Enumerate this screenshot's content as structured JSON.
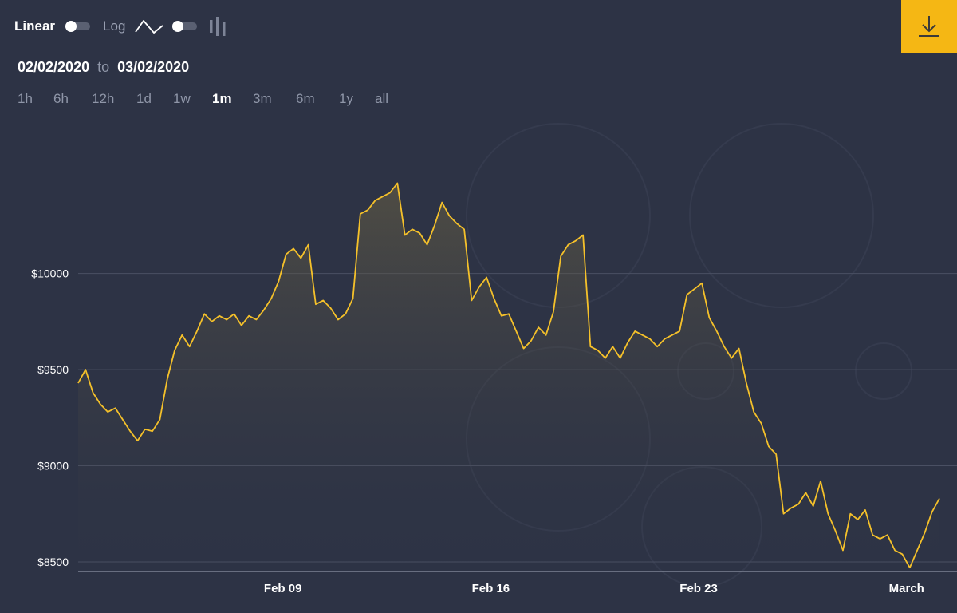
{
  "toolbar": {
    "linear_label": "Linear",
    "log_label": "Log",
    "line_icon": "line-chart-icon",
    "candle_icon": "candlestick-chart-icon",
    "download_icon": "download-icon"
  },
  "date_range": {
    "from": "02/02/2020",
    "to_label": "to",
    "to": "03/02/2020"
  },
  "ranges": [
    "1h",
    "6h",
    "12h",
    "1d",
    "1w",
    "1m",
    "3m",
    "6m",
    "1y",
    "all"
  ],
  "active_range": "1m",
  "colors": {
    "background": "#2d3345",
    "line": "#f5c12a",
    "accent": "#f5b714",
    "grid": "#4a5063"
  },
  "chart_data": {
    "type": "area",
    "title": "",
    "xlabel": "",
    "ylabel": "",
    "x_ticks": [
      {
        "label": "Feb 09",
        "x": "2020-02-09"
      },
      {
        "label": "Feb 16",
        "x": "2020-02-16"
      },
      {
        "label": "Feb 23",
        "x": "2020-02-23"
      },
      {
        "label": "March",
        "x": "2020-03-01"
      }
    ],
    "y_ticks": [
      {
        "label": "$10000",
        "value": 10000
      },
      {
        "label": "$9500",
        "value": 9500
      },
      {
        "label": "$9000",
        "value": 9000
      },
      {
        "label": "$8500",
        "value": 8500
      }
    ],
    "xlim": [
      "2020-02-02",
      "2020-03-02"
    ],
    "ylim": [
      8450,
      10800
    ],
    "grid": true,
    "series": [
      {
        "x": [
          "2020-02-02 00:00",
          "2020-02-02 06:00",
          "2020-02-02 12:00",
          "2020-02-02 18:00",
          "2020-02-03 00:00",
          "2020-02-03 06:00",
          "2020-02-03 12:00",
          "2020-02-03 18:00",
          "2020-02-04 00:00",
          "2020-02-04 06:00",
          "2020-02-04 12:00",
          "2020-02-04 18:00",
          "2020-02-05 00:00",
          "2020-02-05 06:00",
          "2020-02-05 12:00",
          "2020-02-05 18:00",
          "2020-02-06 00:00",
          "2020-02-06 06:00",
          "2020-02-06 12:00",
          "2020-02-06 18:00",
          "2020-02-07 00:00",
          "2020-02-07 06:00",
          "2020-02-07 12:00",
          "2020-02-07 18:00",
          "2020-02-08 00:00",
          "2020-02-08 06:00",
          "2020-02-08 12:00",
          "2020-02-08 18:00",
          "2020-02-09 00:00",
          "2020-02-09 06:00",
          "2020-02-09 12:00",
          "2020-02-09 18:00",
          "2020-02-10 00:00",
          "2020-02-10 06:00",
          "2020-02-10 12:00",
          "2020-02-10 18:00",
          "2020-02-11 00:00",
          "2020-02-11 06:00",
          "2020-02-11 12:00",
          "2020-02-11 18:00",
          "2020-02-12 00:00",
          "2020-02-12 06:00",
          "2020-02-12 12:00",
          "2020-02-12 18:00",
          "2020-02-13 00:00",
          "2020-02-13 06:00",
          "2020-02-13 12:00",
          "2020-02-13 18:00",
          "2020-02-14 00:00",
          "2020-02-14 06:00",
          "2020-02-14 12:00",
          "2020-02-14 18:00",
          "2020-02-15 00:00",
          "2020-02-15 06:00",
          "2020-02-15 12:00",
          "2020-02-15 18:00",
          "2020-02-16 00:00",
          "2020-02-16 06:00",
          "2020-02-16 12:00",
          "2020-02-16 18:00",
          "2020-02-17 00:00",
          "2020-02-17 06:00",
          "2020-02-17 12:00",
          "2020-02-17 18:00",
          "2020-02-18 00:00",
          "2020-02-18 06:00",
          "2020-02-18 12:00",
          "2020-02-18 18:00",
          "2020-02-19 00:00",
          "2020-02-19 06:00",
          "2020-02-19 12:00",
          "2020-02-19 18:00",
          "2020-02-20 00:00",
          "2020-02-20 06:00",
          "2020-02-20 12:00",
          "2020-02-20 18:00",
          "2020-02-21 00:00",
          "2020-02-21 06:00",
          "2020-02-21 12:00",
          "2020-02-21 18:00",
          "2020-02-22 00:00",
          "2020-02-22 06:00",
          "2020-02-22 12:00",
          "2020-02-22 18:00",
          "2020-02-23 00:00",
          "2020-02-23 06:00",
          "2020-02-23 12:00",
          "2020-02-23 18:00",
          "2020-02-24 00:00",
          "2020-02-24 06:00",
          "2020-02-24 12:00",
          "2020-02-24 18:00",
          "2020-02-25 00:00",
          "2020-02-25 06:00",
          "2020-02-25 12:00",
          "2020-02-25 18:00",
          "2020-02-26 00:00",
          "2020-02-26 06:00",
          "2020-02-26 12:00",
          "2020-02-26 18:00",
          "2020-02-27 00:00",
          "2020-02-27 06:00",
          "2020-02-27 12:00",
          "2020-02-27 18:00",
          "2020-02-28 00:00",
          "2020-02-28 06:00",
          "2020-02-28 12:00",
          "2020-02-28 18:00",
          "2020-02-29 00:00",
          "2020-02-29 06:00",
          "2020-02-29 12:00",
          "2020-02-29 18:00",
          "2020-03-01 00:00",
          "2020-03-01 06:00",
          "2020-03-01 12:00",
          "2020-03-01 18:00",
          "2020-03-02 00:00"
        ],
        "values": [
          9430,
          9500,
          9380,
          9320,
          9280,
          9300,
          9240,
          9180,
          9130,
          9190,
          9180,
          9240,
          9450,
          9600,
          9680,
          9620,
          9700,
          9790,
          9750,
          9780,
          9760,
          9790,
          9730,
          9780,
          9760,
          9810,
          9870,
          9960,
          10100,
          10130,
          10080,
          10150,
          9840,
          9860,
          9820,
          9760,
          9790,
          9870,
          10310,
          10330,
          10380,
          10400,
          10420,
          10470,
          10200,
          10230,
          10210,
          10150,
          10250,
          10370,
          10300,
          10260,
          10230,
          9860,
          9930,
          9980,
          9870,
          9780,
          9790,
          9700,
          9610,
          9650,
          9720,
          9680,
          9800,
          10090,
          10150,
          10170,
          10200,
          9620,
          9600,
          9560,
          9620,
          9560,
          9640,
          9700,
          9680,
          9660,
          9620,
          9660,
          9680,
          9700,
          9890,
          9920,
          9950,
          9770,
          9700,
          9620,
          9560,
          9610,
          9430,
          9280,
          9220,
          9100,
          9060,
          8750,
          8780,
          8800,
          8860,
          8790,
          8920,
          8750,
          8660,
          8560,
          8750,
          8720,
          8770,
          8640,
          8620,
          8640,
          8560,
          8540,
          8470,
          8560,
          8650,
          8760,
          8830
        ]
      }
    ]
  }
}
